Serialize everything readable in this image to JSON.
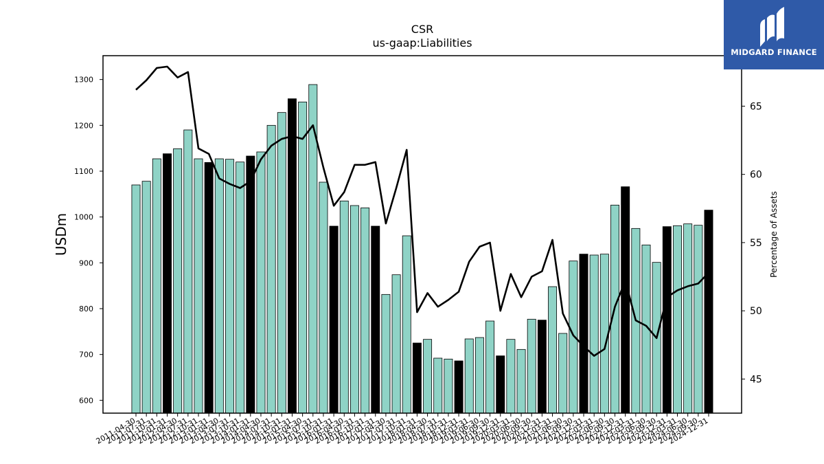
{
  "chart_data": {
    "type": "bar",
    "title": "CSR",
    "subtitle": "us-gaap:Liabilities",
    "ylabel": "USDm",
    "y2label": "Percentage of Assets",
    "ylim": [
      572,
      1352
    ],
    "y2lim": [
      42.5,
      68.7
    ],
    "yticks": [
      600,
      700,
      800,
      900,
      1000,
      1100,
      1200,
      1300
    ],
    "y2ticks": [
      45,
      50,
      55,
      60,
      65
    ],
    "colors": {
      "bar": "#8fd3c6",
      "highlight": "#000000",
      "line": "#000000"
    },
    "categories": [
      "2011-04-30",
      "2011-07-31",
      "2011-10-31",
      "2012-01-31",
      "2012-04-30",
      "2012-07-31",
      "2012-10-31",
      "2013-01-31",
      "2013-04-30",
      "2013-07-31",
      "2013-10-31",
      "2014-01-31",
      "2014-04-30",
      "2014-07-31",
      "2014-10-31",
      "2015-01-31",
      "2015-04-30",
      "2015-07-31",
      "2015-10-31",
      "2016-01-31",
      "2016-04-30",
      "2016-07-31",
      "2016-10-31",
      "2017-01-31",
      "2017-04-30",
      "2017-07-31",
      "2017-10-31",
      "2018-01-31",
      "2018-04-30",
      "2018-07-31",
      "2018-10-31",
      "2018-12-31",
      "2019-03-31",
      "2019-06-30",
      "2019-09-30",
      "2019-12-31",
      "2020-03-31",
      "2020-06-30",
      "2020-09-30",
      "2020-12-31",
      "2021-03-31",
      "2021-06-30",
      "2021-09-30",
      "2021-12-31",
      "2022-03-31",
      "2022-06-30",
      "2022-09-30",
      "2022-12-31",
      "2023-03-31",
      "2023-06-30",
      "2023-09-30",
      "2023-12-31",
      "2024-03-31",
      "2024-06-30",
      "2024-09-30",
      "2024-12-31"
    ],
    "xtick_labels": [
      "2011-04-30",
      "2011-07-31",
      "2011-10-31",
      "2012-01-31",
      "2012-04-30",
      "2012-07-31",
      "2012-10-31",
      "2013-01-31",
      "2013-04-30",
      "2013-07-31",
      "2013-10-31",
      "2014-01-31",
      "2014-04-30",
      "2014-07-31",
      "2014-10-31",
      "2015-01-31",
      "2015-04-30",
      "2015-07-31",
      "2015-10-31",
      "2016-01-31",
      "2016-04-30",
      "2016-07-31",
      "2016-10-31",
      "2017-01-31",
      "2017-04-30",
      "2017-07-31",
      "2017-10-31",
      "2018-01-31",
      "2018-04-30",
      "2018-07-31",
      "2018-10-31",
      "2018-12-31",
      "2019-03-31",
      "2019-06-30",
      "2019-09-30",
      "2019-12-31",
      "2020-03-31",
      "2020-06-30",
      "2020-09-30",
      "2020-12-31",
      "2021-03-31",
      "2021-06-30",
      "2021-09-30",
      "2021-12-31",
      "2022-03-31",
      "2022-06-30",
      "2022-09-30",
      "2022-12-31",
      "2023-03-31",
      "2023-06-30",
      "2023-09-30",
      "2023-12-31",
      "2024-03-31",
      "2024-06-30",
      "2024-09-30",
      "2024-12-31"
    ],
    "series": [
      {
        "kind": "bar",
        "values": [
          1070,
          1078,
          1127,
          1138,
          1149,
          1190,
          1127,
          1119,
          1127,
          1126,
          1120,
          1133,
          1142,
          1200,
          1228,
          1258,
          1251,
          1289,
          1076,
          980,
          1035,
          1025,
          1020,
          980,
          831,
          874,
          959,
          725,
          733,
          692,
          690,
          686,
          734,
          737,
          773,
          697,
          733,
          711,
          777,
          775,
          848,
          746,
          904,
          919,
          917,
          919,
          1026,
          1066,
          975,
          939,
          901,
          979,
          981,
          985,
          982,
          1015
        ],
        "highlight": [
          false,
          false,
          false,
          true,
          false,
          false,
          false,
          true,
          false,
          false,
          false,
          true,
          false,
          false,
          false,
          true,
          false,
          false,
          false,
          true,
          false,
          false,
          false,
          true,
          false,
          false,
          false,
          true,
          false,
          false,
          false,
          true,
          false,
          false,
          false,
          true,
          false,
          false,
          false,
          true,
          false,
          false,
          false,
          true,
          false,
          false,
          false,
          true,
          false,
          false,
          false,
          true,
          false,
          false,
          false,
          true
        ]
      },
      {
        "kind": "line",
        "axis": "right",
        "values": [
          66.2,
          66.9,
          67.8,
          67.9,
          67.1,
          67.5,
          61.9,
          61.5,
          59.7,
          59.3,
          59.0,
          59.5,
          61.1,
          62.1,
          62.6,
          62.8,
          62.6,
          63.6,
          60.5,
          57.7,
          58.7,
          60.7,
          60.7,
          60.9,
          56.4,
          59.0,
          61.8,
          49.9,
          51.3,
          50.3,
          50.8,
          51.4,
          53.6,
          54.7,
          55.0,
          50.0,
          52.7,
          51.0,
          52.5,
          52.9,
          55.2,
          49.8,
          48.2,
          47.4,
          46.7,
          47.2,
          50.3,
          52.2,
          49.3,
          48.9,
          48.0,
          51.0,
          51.5,
          51.8,
          52.0,
          52.8
        ]
      }
    ]
  },
  "logo": {
    "text": "MIDGARD FINANCE"
  }
}
